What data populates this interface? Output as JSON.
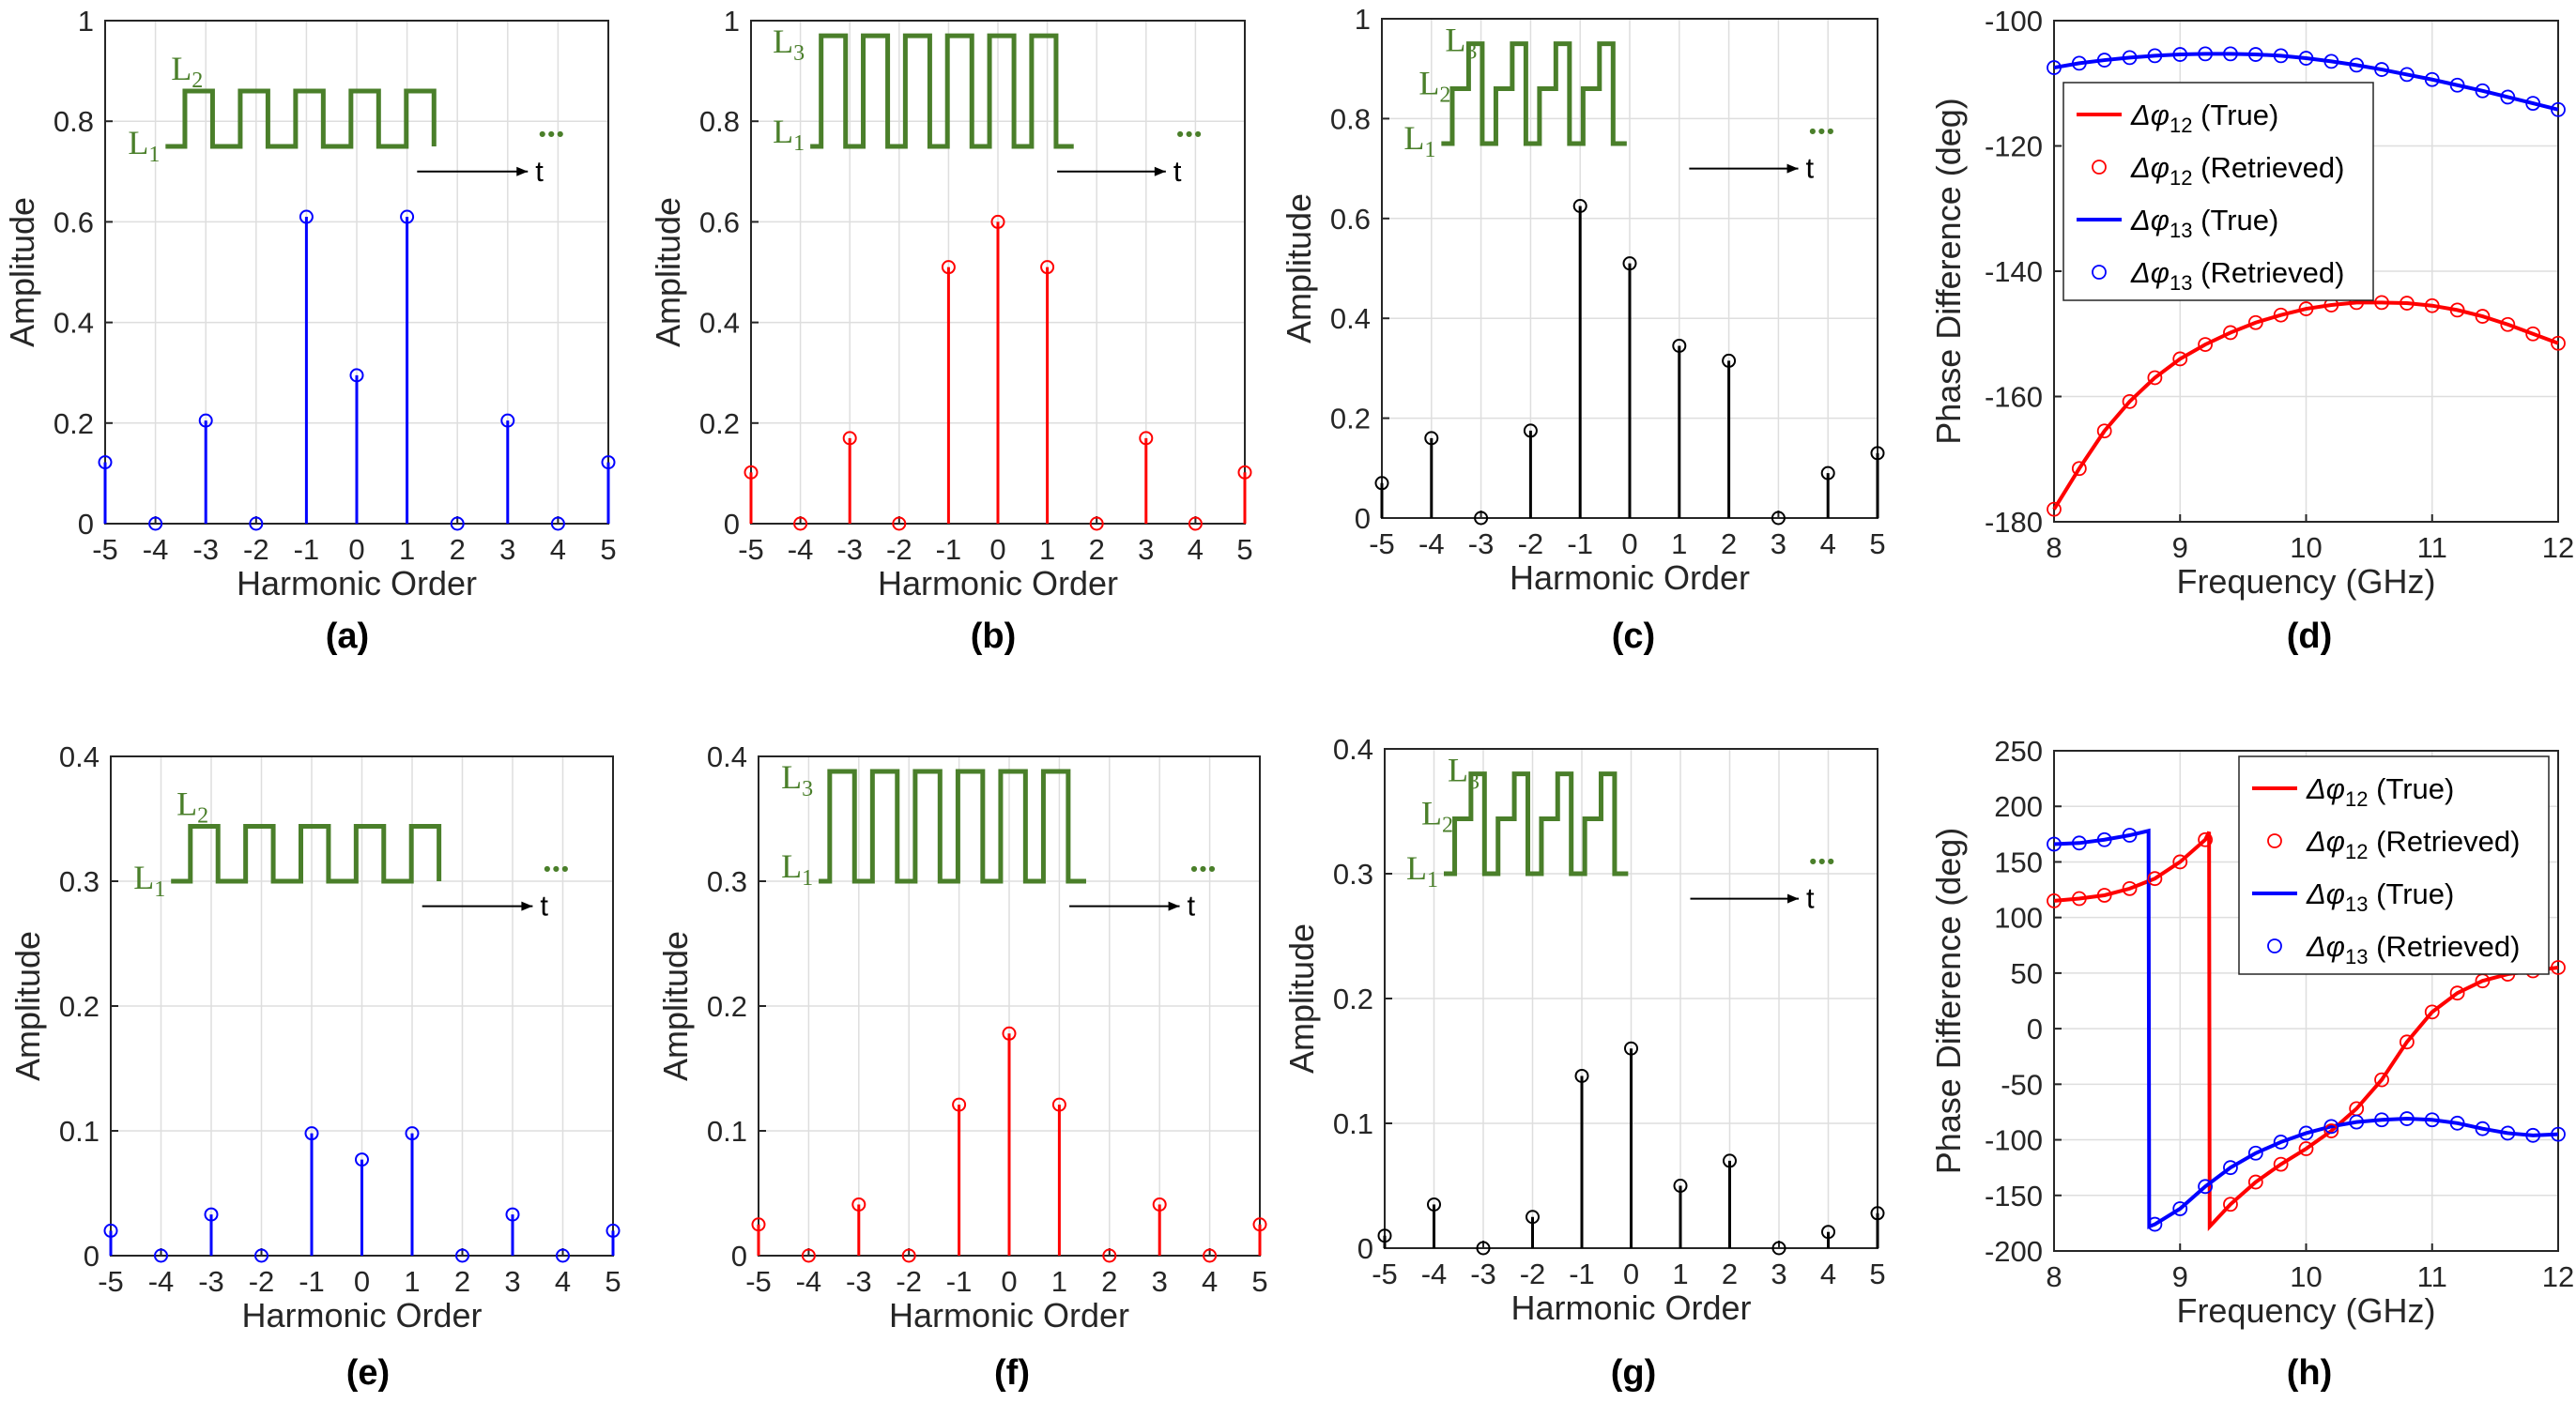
{
  "colors": {
    "blue": "#0000ff",
    "red": "#ff0000",
    "black": "#000000",
    "green": "#4a7f2a",
    "grid": "#dedede",
    "axis": "#262626"
  },
  "chart_data": [
    {
      "id": "a",
      "panel_label": "(a)",
      "type": "stem",
      "color": "blue",
      "x": [
        -5,
        -4,
        -3,
        -2,
        -1,
        0,
        1,
        2,
        3,
        4,
        5
      ],
      "values": [
        0.122,
        0,
        0.205,
        0,
        0.61,
        0.295,
        0.61,
        0,
        0.205,
        0,
        0.122
      ],
      "xlim": [
        -5,
        5
      ],
      "ylim": [
        0,
        1
      ],
      "xticks": [
        -5,
        -4,
        -3,
        -2,
        -1,
        0,
        1,
        2,
        3,
        4,
        5
      ],
      "yticks": [
        0,
        0.2,
        0.4,
        0.6,
        0.8,
        1
      ],
      "ytick_labels": [
        "0",
        "0.2",
        "0.4",
        "0.6",
        "0.8",
        "1"
      ],
      "xlabel": "Harmonic Order",
      "ylabel": "Amplitude",
      "inset": {
        "kind": "two-level",
        "labels": [
          "L1",
          "L2"
        ],
        "time_label": "t",
        "ellipsis": "..."
      }
    },
    {
      "id": "b",
      "panel_label": "(b)",
      "type": "stem",
      "color": "red",
      "x": [
        -5,
        -4,
        -3,
        -2,
        -1,
        0,
        1,
        2,
        3,
        4,
        5
      ],
      "values": [
        0.102,
        0,
        0.17,
        0,
        0.51,
        0.6,
        0.51,
        0,
        0.17,
        0,
        0.102
      ],
      "xlim": [
        -5,
        5
      ],
      "ylim": [
        0,
        1
      ],
      "xticks": [
        -5,
        -4,
        -3,
        -2,
        -1,
        0,
        1,
        2,
        3,
        4,
        5
      ],
      "yticks": [
        0,
        0.2,
        0.4,
        0.6,
        0.8,
        1
      ],
      "ytick_labels": [
        "0",
        "0.2",
        "0.4",
        "0.6",
        "0.8",
        "1"
      ],
      "xlabel": "Harmonic Order",
      "ylabel": "Amplitude",
      "inset": {
        "kind": "two-level-tall",
        "labels": [
          "L1",
          "L3"
        ],
        "time_label": "t",
        "ellipsis": "..."
      }
    },
    {
      "id": "c",
      "panel_label": "(c)",
      "type": "stem",
      "color": "black",
      "x": [
        -5,
        -4,
        -3,
        -2,
        -1,
        0,
        1,
        2,
        3,
        4,
        5
      ],
      "values": [
        0.07,
        0.16,
        0,
        0.175,
        0.625,
        0.51,
        0.345,
        0.315,
        0,
        0.09,
        0.13
      ],
      "xlim": [
        -5,
        5
      ],
      "ylim": [
        0,
        1
      ],
      "xticks": [
        -5,
        -4,
        -3,
        -2,
        -1,
        0,
        1,
        2,
        3,
        4,
        5
      ],
      "yticks": [
        0,
        0.2,
        0.4,
        0.6,
        0.8,
        1
      ],
      "ytick_labels": [
        "0",
        "0.2",
        "0.4",
        "0.6",
        "0.8",
        "1"
      ],
      "xlabel": "Harmonic Order",
      "ylabel": "Amplitude",
      "inset": {
        "kind": "three-level",
        "labels": [
          "L1",
          "L2",
          "L3"
        ],
        "time_label": "t",
        "ellipsis": "..."
      }
    },
    {
      "id": "d",
      "panel_label": "(d)",
      "type": "line",
      "xlim": [
        8,
        12
      ],
      "ylim": [
        -180,
        -100
      ],
      "xticks": [
        8,
        9,
        10,
        11,
        12
      ],
      "yticks": [
        -180,
        -160,
        -140,
        -120,
        -100
      ],
      "ytick_labels": [
        "-180",
        "-160",
        "-140",
        "-120",
        "-100"
      ],
      "xlabel": "Frequency (GHz)",
      "ylabel": "Phase Difference (deg)",
      "series": [
        {
          "name": "Δφ 12 (True)",
          "sub": "12",
          "text": "(True)",
          "color": "red",
          "x": [
            8,
            8.2,
            8.4,
            8.6,
            8.8,
            9,
            9.2,
            9.4,
            9.6,
            9.8,
            10,
            10.2,
            10.4,
            10.6,
            10.8,
            11,
            11.2,
            11.4,
            11.6,
            11.8,
            12
          ],
          "values": [
            -178,
            -171.5,
            -165.5,
            -160.8,
            -157,
            -154,
            -151.7,
            -149.8,
            -148.2,
            -147,
            -146,
            -145.4,
            -145,
            -145,
            -145.1,
            -145.5,
            -146.2,
            -147.2,
            -148.5,
            -150,
            -151.5
          ]
        },
        {
          "name": "Δφ 13 (True)",
          "sub": "13",
          "text": "(True)",
          "color": "blue",
          "x": [
            8,
            8.2,
            8.4,
            8.6,
            8.8,
            9,
            9.2,
            9.4,
            9.6,
            9.8,
            10,
            10.2,
            10.4,
            10.6,
            10.8,
            11,
            11.2,
            11.4,
            11.6,
            11.8,
            12
          ],
          "values": [
            -107.5,
            -106.8,
            -106.3,
            -105.9,
            -105.6,
            -105.4,
            -105.3,
            -105.3,
            -105.4,
            -105.6,
            -106,
            -106.5,
            -107.1,
            -107.8,
            -108.6,
            -109.4,
            -110.3,
            -111.2,
            -112.2,
            -113.2,
            -114.2
          ]
        }
      ],
      "retrieved": [
        {
          "name": "Δφ 12 (Retrieved)",
          "sub": "12",
          "text": "(Retrieved)",
          "color": "red",
          "of": 0
        },
        {
          "name": "Δφ 13 (Retrieved)",
          "sub": "13",
          "text": "(Retrieved)",
          "color": "blue",
          "of": 1
        }
      ],
      "legend_position": "upper-left"
    },
    {
      "id": "e",
      "panel_label": "(e)",
      "type": "stem",
      "color": "blue",
      "x": [
        -5,
        -4,
        -3,
        -2,
        -1,
        0,
        1,
        2,
        3,
        4,
        5
      ],
      "values": [
        0.02,
        0,
        0.033,
        0,
        0.098,
        0.077,
        0.098,
        0,
        0.033,
        0,
        0.02
      ],
      "xlim": [
        -5,
        5
      ],
      "ylim": [
        0,
        0.4
      ],
      "xticks": [
        -5,
        -4,
        -3,
        -2,
        -1,
        0,
        1,
        2,
        3,
        4,
        5
      ],
      "yticks": [
        0,
        0.1,
        0.2,
        0.3,
        0.4
      ],
      "ytick_labels": [
        "0",
        "0.1",
        "0.2",
        "0.3",
        "0.4"
      ],
      "xlabel": "Harmonic Order",
      "ylabel": "Amplitude",
      "inset": {
        "kind": "two-level",
        "labels": [
          "L1",
          "L2"
        ],
        "time_label": "t",
        "ellipsis": "..."
      }
    },
    {
      "id": "f",
      "panel_label": "(f)",
      "type": "stem",
      "color": "red",
      "x": [
        -5,
        -4,
        -3,
        -2,
        -1,
        0,
        1,
        2,
        3,
        4,
        5
      ],
      "values": [
        0.025,
        0,
        0.041,
        0,
        0.121,
        0.178,
        0.121,
        0,
        0.041,
        0,
        0.025
      ],
      "xlim": [
        -5,
        5
      ],
      "ylim": [
        0,
        0.4
      ],
      "xticks": [
        -5,
        -4,
        -3,
        -2,
        -1,
        0,
        1,
        2,
        3,
        4,
        5
      ],
      "yticks": [
        0,
        0.1,
        0.2,
        0.3,
        0.4
      ],
      "ytick_labels": [
        "0",
        "0.1",
        "0.2",
        "0.3",
        "0.4"
      ],
      "xlabel": "Harmonic Order",
      "ylabel": "Amplitude",
      "inset": {
        "kind": "two-level-tall",
        "labels": [
          "L1",
          "L3"
        ],
        "time_label": "t",
        "ellipsis": "..."
      }
    },
    {
      "id": "g",
      "panel_label": "(g)",
      "type": "stem",
      "color": "black",
      "x": [
        -5,
        -4,
        -3,
        -2,
        -1,
        0,
        1,
        2,
        3,
        4,
        5
      ],
      "values": [
        0.01,
        0.035,
        0,
        0.025,
        0.138,
        0.16,
        0.05,
        0.07,
        0,
        0.013,
        0.028
      ],
      "xlim": [
        -5,
        5
      ],
      "ylim": [
        0,
        0.4
      ],
      "xticks": [
        -5,
        -4,
        -3,
        -2,
        -1,
        0,
        1,
        2,
        3,
        4,
        5
      ],
      "yticks": [
        0,
        0.1,
        0.2,
        0.3,
        0.4
      ],
      "ytick_labels": [
        "0",
        "0.1",
        "0.2",
        "0.3",
        "0.4"
      ],
      "xlabel": "Harmonic Order",
      "ylabel": "Amplitude",
      "inset": {
        "kind": "three-level",
        "labels": [
          "L1",
          "L2",
          "L3"
        ],
        "time_label": "t",
        "ellipsis": "..."
      }
    },
    {
      "id": "h",
      "panel_label": "(h)",
      "type": "line",
      "xlim": [
        8,
        12
      ],
      "ylim": [
        -200,
        250
      ],
      "xticks": [
        8,
        9,
        10,
        11,
        12
      ],
      "yticks": [
        -200,
        -150,
        -100,
        -50,
        0,
        50,
        100,
        150,
        200,
        250
      ],
      "ytick_labels": [
        "-200",
        "-150",
        "-100",
        "-50",
        "0",
        "50",
        "100",
        "150",
        "200",
        "250"
      ],
      "xlabel": "Frequency (GHz)",
      "ylabel": "Phase Difference (deg)",
      "series": [
        {
          "name": "Δφ 12 (True)",
          "sub": "12",
          "text": "(True)",
          "color": "red",
          "x": [
            8,
            8.2,
            8.4,
            8.6,
            8.8,
            9,
            9.2,
            9.23,
            9.235,
            9.4,
            9.6,
            9.8,
            10,
            10.2,
            10.4,
            10.6,
            10.8,
            11,
            11.2,
            11.4,
            11.6,
            11.8,
            12
          ],
          "values": [
            115,
            117,
            120,
            126,
            135,
            150,
            170,
            177,
            -178,
            -158,
            -138,
            -122,
            -108,
            -92,
            -72,
            -46,
            -12,
            15,
            32,
            43,
            49,
            52,
            55
          ]
        },
        {
          "name": "Δφ 13 (True)",
          "sub": "13",
          "text": "(True)",
          "color": "blue",
          "x": [
            8,
            8.2,
            8.4,
            8.6,
            8.75,
            8.755,
            8.8,
            9,
            9.2,
            9.4,
            9.6,
            9.8,
            10,
            10.2,
            10.4,
            10.6,
            10.8,
            11,
            11.2,
            11.4,
            11.6,
            11.8,
            12
          ],
          "values": [
            166,
            167,
            170,
            174,
            178,
            -178,
            -176,
            -162,
            -142,
            -125,
            -112,
            -102,
            -94,
            -88,
            -84,
            -82,
            -81,
            -82,
            -85,
            -90,
            -94,
            -96,
            -95
          ]
        }
      ],
      "retrieved_points": [
        {
          "color": "red",
          "x": [
            8,
            8.2,
            8.4,
            8.6,
            8.8,
            9,
            9.2,
            9.4,
            9.6,
            9.8,
            10,
            10.2,
            10.4,
            10.6,
            10.8,
            11,
            11.2,
            11.4,
            11.6,
            11.8,
            12
          ],
          "values": [
            115,
            117,
            120,
            126,
            135,
            150,
            170,
            -158,
            -138,
            -122,
            -108,
            -92,
            -72,
            -46,
            -12,
            15,
            32,
            43,
            49,
            52,
            55
          ]
        },
        {
          "color": "blue",
          "x": [
            8,
            8.2,
            8.4,
            8.6,
            8.8,
            9,
            9.2,
            9.4,
            9.6,
            9.8,
            10,
            10.2,
            10.4,
            10.6,
            10.8,
            11,
            11.2,
            11.4,
            11.6,
            11.8,
            12
          ],
          "values": [
            166,
            167,
            170,
            174,
            -176,
            -162,
            -142,
            -125,
            -112,
            -102,
            -94,
            -88,
            -84,
            -82,
            -81,
            -82,
            -85,
            -90,
            -94,
            -96,
            -95
          ]
        }
      ],
      "retrieved": [
        {
          "name": "Δφ 12 (Retrieved)",
          "sub": "12",
          "text": "(Retrieved)",
          "color": "red"
        },
        {
          "name": "Δφ 13 (Retrieved)",
          "sub": "13",
          "text": "(Retrieved)",
          "color": "blue"
        }
      ],
      "legend_position": "upper-right"
    }
  ]
}
